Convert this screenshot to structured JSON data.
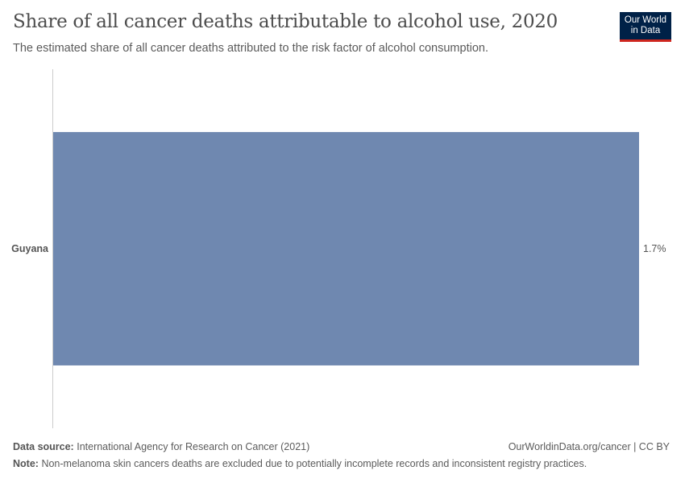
{
  "header": {
    "title": "Share of all cancer deaths attributable to alcohol use, 2020",
    "subtitle": "The estimated share of all cancer deaths attributed to the risk factor of alcohol consumption.",
    "logo": "Our World in Data"
  },
  "chart_data": {
    "type": "bar",
    "orientation": "horizontal",
    "categories": [
      "Guyana"
    ],
    "values": [
      1.7
    ],
    "value_labels": [
      "1.7%"
    ],
    "xlim": [
      0,
      1.7
    ],
    "bar_color": "#6f88b0",
    "grid": false
  },
  "footer": {
    "source_label": "Data source:",
    "source": "International Agency for Research on Cancer (2021)",
    "link": "OurWorldinData.org/cancer | CC BY",
    "note_label": "Note:",
    "note": "Non-melanoma skin cancers deaths are excluded due to potentially incomplete records and inconsistent registry practices."
  }
}
